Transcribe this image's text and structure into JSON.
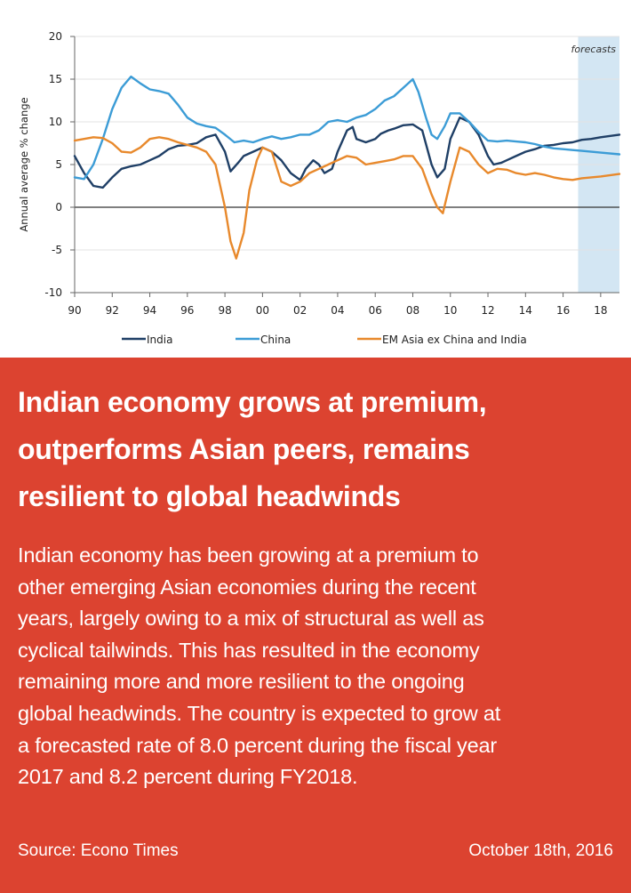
{
  "chart_data": {
    "type": "line",
    "ylabel": "Annual average % change",
    "ylim": [
      -10,
      20
    ],
    "yticks": [
      -10,
      -5,
      0,
      5,
      10,
      15,
      20
    ],
    "xlim": [
      1990,
      2019
    ],
    "xticks": [
      {
        "x": 1990,
        "label": "90"
      },
      {
        "x": 1992,
        "label": "92"
      },
      {
        "x": 1994,
        "label": "94"
      },
      {
        "x": 1996,
        "label": "96"
      },
      {
        "x": 1998,
        "label": "98"
      },
      {
        "x": 2000,
        "label": "00"
      },
      {
        "x": 2002,
        "label": "02"
      },
      {
        "x": 2004,
        "label": "04"
      },
      {
        "x": 2006,
        "label": "06"
      },
      {
        "x": 2008,
        "label": "08"
      },
      {
        "x": 2010,
        "label": "10"
      },
      {
        "x": 2012,
        "label": "12"
      },
      {
        "x": 2014,
        "label": "14"
      },
      {
        "x": 2016,
        "label": "16"
      },
      {
        "x": 2018,
        "label": "18"
      }
    ],
    "grid": true,
    "legend_position": "bottom",
    "forecast": {
      "label": "forecasts",
      "from": 2016.8,
      "to": 2019
    },
    "series": [
      {
        "name": "India",
        "color": "#1f3f66",
        "points": [
          [
            1990,
            6.0
          ],
          [
            1990.5,
            4.0
          ],
          [
            1991,
            2.5
          ],
          [
            1991.5,
            2.3
          ],
          [
            1992,
            3.5
          ],
          [
            1992.5,
            4.5
          ],
          [
            1993,
            4.8
          ],
          [
            1993.5,
            5.0
          ],
          [
            1994,
            5.5
          ],
          [
            1994.5,
            6.0
          ],
          [
            1995,
            6.8
          ],
          [
            1995.5,
            7.2
          ],
          [
            1996,
            7.3
          ],
          [
            1996.5,
            7.5
          ],
          [
            1997,
            8.2
          ],
          [
            1997.5,
            8.5
          ],
          [
            1998,
            6.5
          ],
          [
            1998.3,
            4.2
          ],
          [
            1998.7,
            5.2
          ],
          [
            1999,
            6.0
          ],
          [
            1999.5,
            6.5
          ],
          [
            2000,
            7.0
          ],
          [
            2000.5,
            6.5
          ],
          [
            2001,
            5.5
          ],
          [
            2001.5,
            4.0
          ],
          [
            2002,
            3.2
          ],
          [
            2002.3,
            4.5
          ],
          [
            2002.7,
            5.5
          ],
          [
            2003,
            5.0
          ],
          [
            2003.3,
            4.0
          ],
          [
            2003.7,
            4.5
          ],
          [
            2004,
            6.5
          ],
          [
            2004.5,
            9.0
          ],
          [
            2004.8,
            9.4
          ],
          [
            2005,
            8.0
          ],
          [
            2005.5,
            7.6
          ],
          [
            2006,
            8.0
          ],
          [
            2006.3,
            8.6
          ],
          [
            2006.7,
            9.0
          ],
          [
            2007,
            9.2
          ],
          [
            2007.5,
            9.6
          ],
          [
            2008,
            9.7
          ],
          [
            2008.5,
            9.0
          ],
          [
            2009,
            5.0
          ],
          [
            2009.3,
            3.5
          ],
          [
            2009.7,
            4.5
          ],
          [
            2010,
            8.0
          ],
          [
            2010.5,
            10.5
          ],
          [
            2011,
            10.0
          ],
          [
            2011.5,
            8.5
          ],
          [
            2012,
            6.0
          ],
          [
            2012.3,
            5.0
          ],
          [
            2012.7,
            5.2
          ],
          [
            2013,
            5.5
          ],
          [
            2013.5,
            6.0
          ],
          [
            2014,
            6.5
          ],
          [
            2014.5,
            6.8
          ],
          [
            2015,
            7.2
          ],
          [
            2015.5,
            7.3
          ],
          [
            2016,
            7.5
          ],
          [
            2016.5,
            7.6
          ],
          [
            2017,
            7.9
          ],
          [
            2017.5,
            8.0
          ],
          [
            2018,
            8.2
          ],
          [
            2019,
            8.5
          ]
        ]
      },
      {
        "name": "China",
        "color": "#3c9cd6",
        "points": [
          [
            1990,
            3.5
          ],
          [
            1990.5,
            3.3
          ],
          [
            1991,
            5.0
          ],
          [
            1991.5,
            8.0
          ],
          [
            1992,
            11.5
          ],
          [
            1992.5,
            14.0
          ],
          [
            1993,
            15.3
          ],
          [
            1993.5,
            14.5
          ],
          [
            1994,
            13.8
          ],
          [
            1994.5,
            13.6
          ],
          [
            1995,
            13.3
          ],
          [
            1995.5,
            12.0
          ],
          [
            1996,
            10.5
          ],
          [
            1996.5,
            9.8
          ],
          [
            1997,
            9.5
          ],
          [
            1997.5,
            9.3
          ],
          [
            1998,
            8.5
          ],
          [
            1998.5,
            7.6
          ],
          [
            1999,
            7.8
          ],
          [
            1999.5,
            7.6
          ],
          [
            2000,
            8.0
          ],
          [
            2000.5,
            8.3
          ],
          [
            2001,
            8.0
          ],
          [
            2001.5,
            8.2
          ],
          [
            2002,
            8.5
          ],
          [
            2002.5,
            8.5
          ],
          [
            2003,
            9.0
          ],
          [
            2003.5,
            10.0
          ],
          [
            2004,
            10.2
          ],
          [
            2004.5,
            10.0
          ],
          [
            2005,
            10.5
          ],
          [
            2005.5,
            10.8
          ],
          [
            2006,
            11.5
          ],
          [
            2006.5,
            12.5
          ],
          [
            2007,
            13.0
          ],
          [
            2007.5,
            14.0
          ],
          [
            2008,
            15.0
          ],
          [
            2008.3,
            13.5
          ],
          [
            2008.7,
            10.5
          ],
          [
            2009,
            8.5
          ],
          [
            2009.3,
            8.0
          ],
          [
            2009.7,
            9.5
          ],
          [
            2010,
            11.0
          ],
          [
            2010.5,
            11.0
          ],
          [
            2011,
            10.0
          ],
          [
            2011.5,
            8.8
          ],
          [
            2012,
            7.8
          ],
          [
            2012.5,
            7.7
          ],
          [
            2013,
            7.8
          ],
          [
            2013.5,
            7.7
          ],
          [
            2014,
            7.6
          ],
          [
            2014.5,
            7.4
          ],
          [
            2015,
            7.1
          ],
          [
            2015.5,
            6.9
          ],
          [
            2016,
            6.8
          ],
          [
            2016.5,
            6.7
          ],
          [
            2017,
            6.6
          ],
          [
            2017.5,
            6.5
          ],
          [
            2018,
            6.4
          ],
          [
            2019,
            6.2
          ]
        ]
      },
      {
        "name": "EM Asia ex China and India",
        "color": "#e8892c",
        "points": [
          [
            1990,
            7.8
          ],
          [
            1990.5,
            8.0
          ],
          [
            1991,
            8.2
          ],
          [
            1991.5,
            8.1
          ],
          [
            1992,
            7.5
          ],
          [
            1992.5,
            6.5
          ],
          [
            1993,
            6.4
          ],
          [
            1993.5,
            7.0
          ],
          [
            1994,
            8.0
          ],
          [
            1994.5,
            8.2
          ],
          [
            1995,
            8.0
          ],
          [
            1995.5,
            7.6
          ],
          [
            1996,
            7.3
          ],
          [
            1996.5,
            7.0
          ],
          [
            1997,
            6.5
          ],
          [
            1997.5,
            5.0
          ],
          [
            1998,
            0.0
          ],
          [
            1998.3,
            -4.0
          ],
          [
            1998.6,
            -6.0
          ],
          [
            1999,
            -3.0
          ],
          [
            1999.3,
            2.0
          ],
          [
            1999.7,
            5.5
          ],
          [
            2000,
            7.0
          ],
          [
            2000.5,
            6.5
          ],
          [
            2001,
            3.0
          ],
          [
            2001.5,
            2.5
          ],
          [
            2002,
            3.0
          ],
          [
            2002.5,
            4.0
          ],
          [
            2003,
            4.5
          ],
          [
            2003.5,
            5.0
          ],
          [
            2004,
            5.5
          ],
          [
            2004.5,
            6.0
          ],
          [
            2005,
            5.8
          ],
          [
            2005.5,
            5.0
          ],
          [
            2006,
            5.2
          ],
          [
            2006.5,
            5.4
          ],
          [
            2007,
            5.6
          ],
          [
            2007.5,
            6.0
          ],
          [
            2008,
            6.0
          ],
          [
            2008.5,
            4.5
          ],
          [
            2009,
            1.5
          ],
          [
            2009.3,
            0.0
          ],
          [
            2009.6,
            -0.7
          ],
          [
            2010,
            3.0
          ],
          [
            2010.5,
            7.0
          ],
          [
            2011,
            6.5
          ],
          [
            2011.5,
            5.0
          ],
          [
            2012,
            4.0
          ],
          [
            2012.5,
            4.5
          ],
          [
            2013,
            4.4
          ],
          [
            2013.5,
            4.0
          ],
          [
            2014,
            3.8
          ],
          [
            2014.5,
            4.0
          ],
          [
            2015,
            3.8
          ],
          [
            2015.5,
            3.5
          ],
          [
            2016,
            3.3
          ],
          [
            2016.5,
            3.2
          ],
          [
            2017,
            3.4
          ],
          [
            2018,
            3.6
          ],
          [
            2019,
            3.9
          ]
        ]
      }
    ]
  },
  "article": {
    "headline_lines": [
      "Indian economy grows at premium,",
      "outperforms Asian peers, remains",
      "resilient to global headwinds"
    ],
    "body_lines": [
      "Indian economy has been growing at a premium to",
      "other emerging Asian economies during the recent",
      "years, largely owing to a mix of structural as well as",
      "cyclical tailwinds. This has resulted in the economy",
      "remaining more and more resilient to the ongoing",
      "global headwinds. The country is expected to grow at",
      "a forecasted rate of 8.0 percent during the fiscal year",
      "2017 and 8.2 percent during FY2018."
    ],
    "source": "Source: Econo Times",
    "date": "October 18th, 2016"
  }
}
